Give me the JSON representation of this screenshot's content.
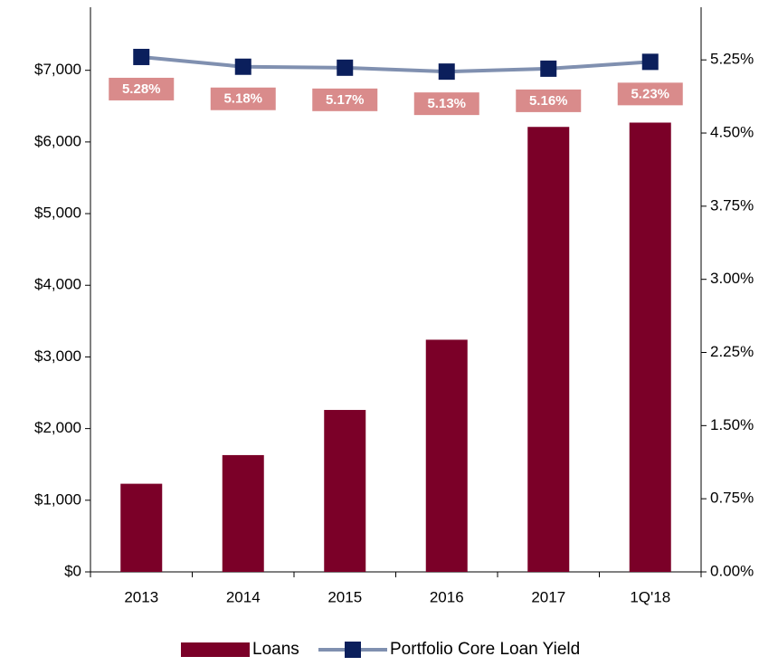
{
  "chart_data": {
    "type": "bar-line",
    "categories": [
      "2013",
      "2014",
      "2015",
      "2016",
      "2017",
      "1Q'18"
    ],
    "series": [
      {
        "name": "Loans",
        "color": "#7b0028",
        "type": "bar",
        "values": [
          1230,
          1630,
          2260,
          3240,
          6210,
          6270
        ]
      },
      {
        "name": "Portfolio Core Loan Yield",
        "color": "#8090b0",
        "marker_color": "#0b1f5c",
        "label_color": "#d98b8b",
        "type": "line",
        "axis": "y2",
        "values": [
          5.28,
          5.18,
          5.17,
          5.13,
          5.16,
          5.23
        ],
        "value_labels": [
          "5.28%",
          "5.18%",
          "5.17%",
          "5.13%",
          "5.16%",
          "5.23%"
        ]
      }
    ],
    "ylim": [
      0,
      7880
    ],
    "yticks": [
      {
        "value": 0,
        "label": "$0"
      },
      {
        "value": 1000,
        "label": "$1,000"
      },
      {
        "value": 2000,
        "label": "$2,000"
      },
      {
        "value": 3000,
        "label": "$3,000"
      },
      {
        "value": 4000,
        "label": "$4,000"
      },
      {
        "value": 5000,
        "label": "$5,000"
      },
      {
        "value": 6000,
        "label": "$6,000"
      },
      {
        "value": 7000,
        "label": "$7,000"
      }
    ],
    "y2lim": [
      0,
      5.79
    ],
    "y2ticks": [
      {
        "value": 0,
        "label": "0.00%"
      },
      {
        "value": 0.75,
        "label": "0.75%"
      },
      {
        "value": 1.5,
        "label": "1.50%"
      },
      {
        "value": 2.25,
        "label": "2.25%"
      },
      {
        "value": 3,
        "label": "3.00%"
      },
      {
        "value": 3.75,
        "label": "3.75%"
      },
      {
        "value": 4.5,
        "label": "4.50%"
      },
      {
        "value": 5.25,
        "label": "5.25%"
      }
    ],
    "grid": false,
    "legend": "bottom"
  }
}
